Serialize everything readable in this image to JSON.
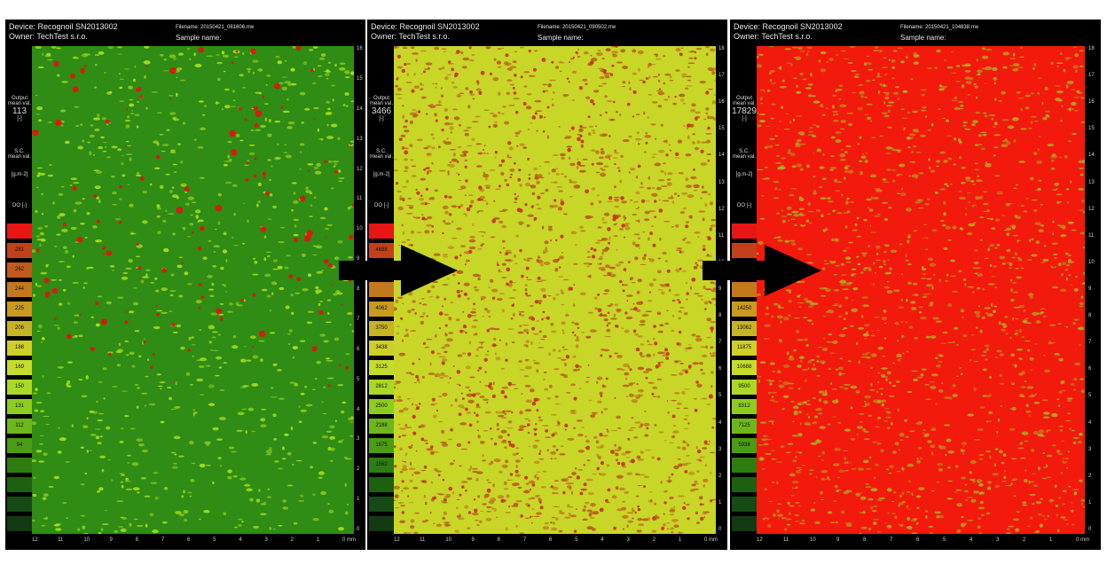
{
  "panels": [
    {
      "device": "Device: Recognoil SN2013002",
      "owner": "Owner: TechTest s.r.o.",
      "filename": "Filename: 20150421_081606.rrw",
      "sample": "Sample name:",
      "output_label_1": "Output",
      "output_label_2": "mean val.",
      "output_value": "113",
      "output_unit": "[-]",
      "sc_label_1": "S.C.",
      "sc_label_2": "mean val.",
      "sc_unit": "[g.m-2]",
      "do_label": "DO [-]",
      "scale_values": [
        "",
        "281",
        "262",
        "244",
        "225",
        "206",
        "188",
        "169",
        "150",
        "131",
        "112",
        "94",
        "",
        "",
        "",
        ""
      ],
      "scale_colors": [
        "#e81515",
        "#c2401a",
        "#c25a1c",
        "#c4781c",
        "#c89a1e",
        "#c6b424",
        "#cfcf2a",
        "#c4dc2c",
        "#aad826",
        "#8ecc20",
        "#6cb81a",
        "#4c9c14",
        "#2d7d10",
        "#1d6010",
        "#164a14",
        "#143a14"
      ],
      "map_base": "#2f8c14",
      "map_dot": "#a8e020",
      "map_spot": "#e81010",
      "y_ticks": [
        "16",
        "15",
        "14",
        "13",
        "12",
        "11",
        "10",
        "9",
        "8",
        "7",
        "6",
        "5",
        "4",
        "3",
        "2",
        "1",
        "0"
      ],
      "x_ticks": [
        "12",
        "11",
        "10",
        "9",
        "8",
        "7",
        "6",
        "5",
        "4",
        "3",
        "2",
        "1",
        "0 mm"
      ]
    },
    {
      "device": "Device: Recognoil SN2013002",
      "owner": "Owner: TechTest s.r.o.",
      "filename": "Filename: 20150421_090502.rrw",
      "sample": "Sample name:",
      "output_label_1": "Output",
      "output_label_2": "mean val.",
      "output_value": "3466",
      "output_unit": "[-]",
      "sc_label_1": "S.C.",
      "sc_label_2": "mean val.",
      "sc_unit": "[g.m-2]",
      "do_label": "DO [-]",
      "scale_values": [
        "",
        "4688",
        "",
        "",
        "4062",
        "3750",
        "3438",
        "3125",
        "2812",
        "2500",
        "2188",
        "1875",
        "1562",
        "",
        "",
        ""
      ],
      "scale_colors": [
        "#e81515",
        "#c2401a",
        "#c25a1c",
        "#c4781c",
        "#c89a1e",
        "#c6b424",
        "#cfcf2a",
        "#c4dc2c",
        "#aad826",
        "#8ecc20",
        "#6cb81a",
        "#4c9c14",
        "#2d7d10",
        "#1d6010",
        "#164a14",
        "#143a14"
      ],
      "map_base": "#c8d628",
      "map_dot": "#b85a18",
      "map_spot": "#c83018",
      "y_ticks": [
        "18",
        "17",
        "16",
        "15",
        "14",
        "13",
        "12",
        "11",
        "10",
        "9",
        "8",
        "7",
        "6",
        "5",
        "4",
        "3",
        "2",
        "1",
        "0"
      ],
      "x_ticks": [
        "12",
        "11",
        "10",
        "9",
        "8",
        "7",
        "6",
        "5",
        "4",
        "3",
        "2",
        "1",
        "0 mm"
      ]
    },
    {
      "device": "Device: Recognoil SN2013002",
      "owner": "Owner: TechTest s.r.o.",
      "filename": "Filename: 20150421_104838.rrw",
      "sample": "Sample name:",
      "output_label_1": "Output",
      "output_label_2": "mean val.",
      "output_value": "17829",
      "output_unit": "[-]",
      "sc_label_1": "S.C.",
      "sc_label_2": "mean val.",
      "sc_unit": "[g.m-2]",
      "do_label": "DO [-]",
      "scale_values": [
        "",
        "",
        "",
        "",
        "14250",
        "13062",
        "11875",
        "10688",
        "9500",
        "8312",
        "7125",
        "5938",
        "",
        "",
        "",
        ""
      ],
      "scale_colors": [
        "#e81515",
        "#c2401a",
        "#c25a1c",
        "#c4781c",
        "#c89a1e",
        "#c6b424",
        "#cfcf2a",
        "#c4dc2c",
        "#aad826",
        "#8ecc20",
        "#6cb81a",
        "#4c9c14",
        "#2d7d10",
        "#1d6010",
        "#164a14",
        "#143a14"
      ],
      "map_base": "#f21a0c",
      "map_dot": "#b4a620",
      "map_spot": "#ff1408",
      "y_ticks": [
        "18",
        "17",
        "16",
        "15",
        "14",
        "13",
        "12",
        "11",
        "10",
        "9",
        "8",
        "7",
        "6",
        "5",
        "4",
        "3",
        "2",
        "1",
        "0"
      ],
      "x_ticks": [
        "12",
        "11",
        "10",
        "9",
        "8",
        "7",
        "6",
        "5",
        "4",
        "3",
        "2",
        "1",
        "0 mm"
      ]
    }
  ]
}
